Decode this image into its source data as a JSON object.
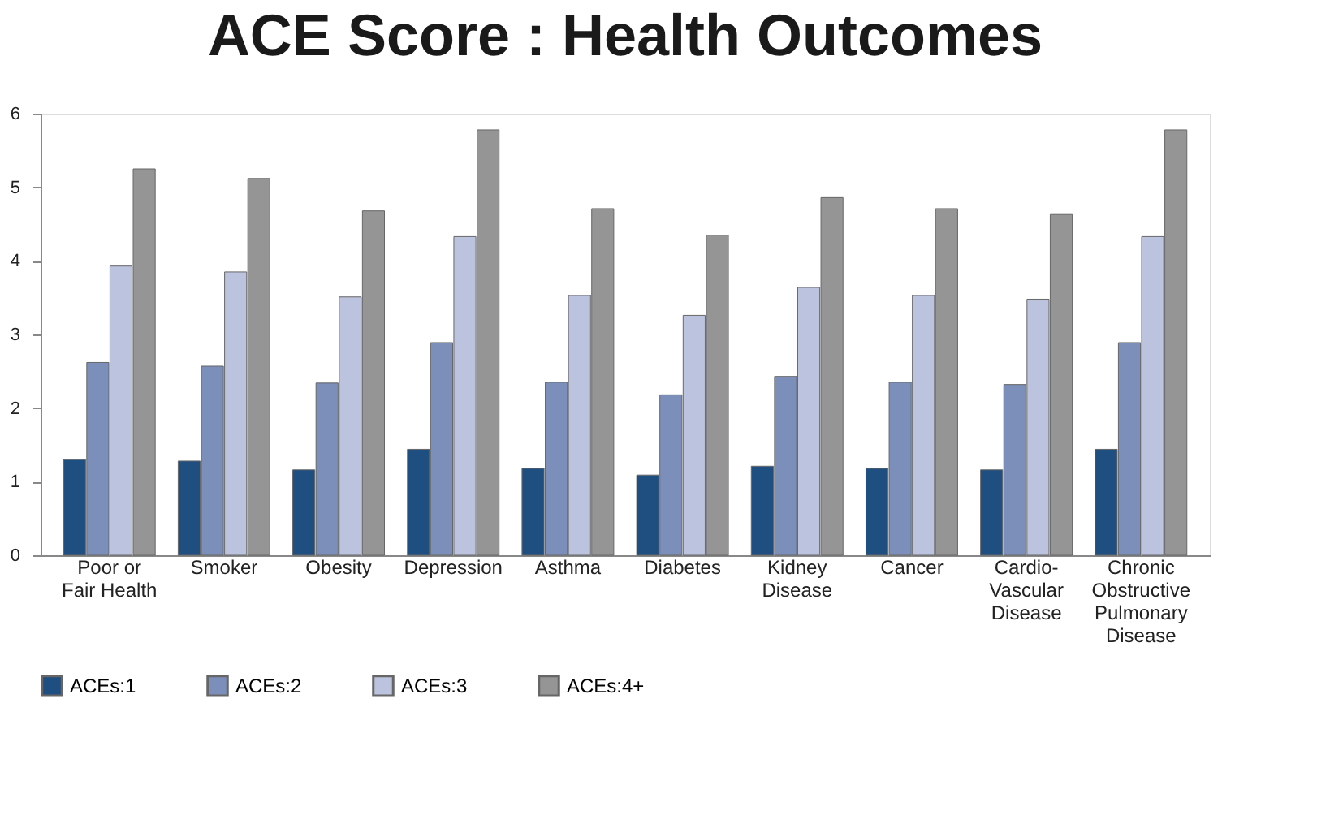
{
  "chart_data": {
    "type": "bar",
    "title": "ACE Score : Health Outcomes",
    "categories": [
      "Poor or Fair Health",
      "Smoker",
      "Obesity",
      "Depression",
      "Asthma",
      "Diabetes",
      "Kidney Disease",
      "Cancer",
      "Cardio-Vascular Disease",
      "Chronic Obstructive Pulmonary Disease"
    ],
    "series": [
      {
        "name": "ACEs:1",
        "color": "#1f4e80",
        "values": [
          1.3,
          1.28,
          1.16,
          1.44,
          1.18,
          1.09,
          1.21,
          1.18,
          1.16,
          1.44
        ]
      },
      {
        "name": "ACEs:2",
        "color": "#7b8fba",
        "values": [
          2.62,
          2.57,
          2.34,
          2.89,
          2.35,
          2.18,
          2.43,
          2.35,
          2.32,
          2.89
        ]
      },
      {
        "name": "ACEs:3",
        "color": "#bcc3df",
        "values": [
          3.93,
          3.85,
          3.51,
          4.33,
          3.53,
          3.26,
          3.64,
          3.53,
          3.48,
          4.33
        ]
      },
      {
        "name": "ACEs:4+",
        "color": "#959595",
        "values": [
          5.25,
          5.12,
          4.68,
          5.78,
          4.71,
          4.35,
          4.86,
          4.71,
          4.63,
          5.78
        ]
      }
    ],
    "ylim": [
      0,
      6
    ],
    "yticks": [
      0,
      1,
      2,
      3,
      4,
      5,
      6
    ],
    "grid": false,
    "legend": "bottom"
  }
}
